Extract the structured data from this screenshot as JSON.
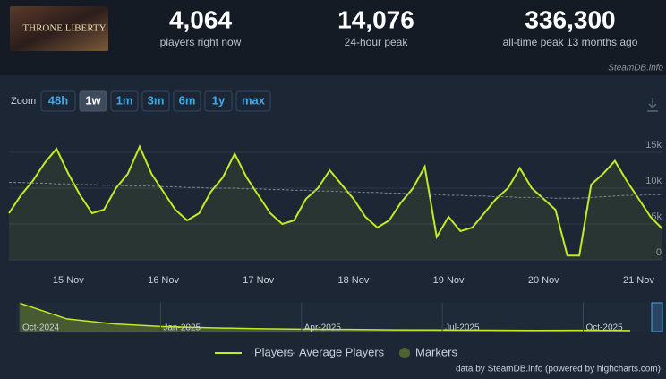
{
  "header": {
    "logo_text": "THRONE LIBERTY",
    "stats": [
      {
        "value": "4,064",
        "label": "players right now"
      },
      {
        "value": "14,076",
        "label": "24-hour peak"
      },
      {
        "value": "336,300",
        "label": "all-time peak 13 months ago"
      }
    ],
    "watermark": "SteamDB.info"
  },
  "zoom": {
    "label": "Zoom",
    "buttons": [
      "48h",
      "1w",
      "1m",
      "3m",
      "6m",
      "1y",
      "max"
    ],
    "active": 1
  },
  "chart_data": {
    "type": "line",
    "categories": [
      null,
      null,
      null,
      null,
      null,
      "15 Nov",
      null,
      null,
      null,
      null,
      null,
      null,
      null,
      "16 Nov",
      null,
      null,
      null,
      null,
      null,
      null,
      null,
      "17 Nov",
      null,
      null,
      null,
      null,
      null,
      null,
      null,
      "18 Nov",
      null,
      null,
      null,
      null,
      null,
      null,
      null,
      "19 Nov",
      null,
      null,
      null,
      null,
      null,
      null,
      null,
      "20 Nov",
      null,
      null,
      null,
      null,
      null,
      null,
      null,
      "21 Nov",
      null,
      null
    ],
    "series": [
      {
        "name": "Players",
        "color": "#c5ea1f",
        "values": [
          6500,
          9000,
          11000,
          13500,
          15500,
          12000,
          9000,
          6500,
          7000,
          10000,
          12000,
          15800,
          12000,
          9500,
          7000,
          5500,
          6500,
          9500,
          11500,
          14800,
          11500,
          9000,
          6500,
          5000,
          5500,
          8500,
          10000,
          12500,
          10500,
          8500,
          6000,
          4500,
          5500,
          8000,
          10000,
          13000,
          3200,
          6000,
          4000,
          4500,
          6500,
          8500,
          10000,
          12800,
          10000,
          8500,
          7000,
          600,
          600,
          10500,
          12000,
          13800,
          11000,
          8500,
          6000,
          4300
        ]
      },
      {
        "name": "Average Players",
        "color": "#7d8794",
        "dashed": true,
        "values": [
          10800,
          10800,
          10700,
          10700,
          10600,
          10600,
          10500,
          10500,
          10400,
          10400,
          10300,
          10300,
          10300,
          10200,
          10200,
          10100,
          10100,
          10000,
          10000,
          10000,
          9900,
          9900,
          9800,
          9800,
          9700,
          9700,
          9600,
          9600,
          9500,
          9500,
          9400,
          9400,
          9300,
          9300,
          9200,
          9200,
          9100,
          9000,
          9000,
          8900,
          8900,
          8800,
          8800,
          8700,
          8700,
          8700,
          8600,
          8600,
          8600,
          8700,
          8800,
          8900,
          9000,
          9000,
          9100,
          9100
        ]
      }
    ],
    "markers": {
      "name": "Markers",
      "color": "#4f6330"
    },
    "ylim": [
      0,
      18000
    ],
    "yticks": [
      0,
      {
        "value": 5000,
        "label": "5k"
      },
      {
        "value": 10000,
        "label": "10k"
      },
      {
        "value": 15000,
        "label": "15k"
      }
    ],
    "grid": true,
    "navigator": {
      "categories": [
        "Oct-2024",
        null,
        null,
        "Jan-2025",
        null,
        null,
        "Apr-2025",
        null,
        null,
        "Jul-2025",
        null,
        null,
        "Oct-2025",
        null
      ],
      "values": [
        336300,
        150000,
        90000,
        60000,
        45000,
        35000,
        28000,
        25000,
        20000,
        18000,
        16000,
        14000,
        15000,
        12000
      ],
      "ylim": [
        0,
        340000
      ]
    }
  },
  "credits": "data by SteamDB.info (powered by highcharts.com)"
}
